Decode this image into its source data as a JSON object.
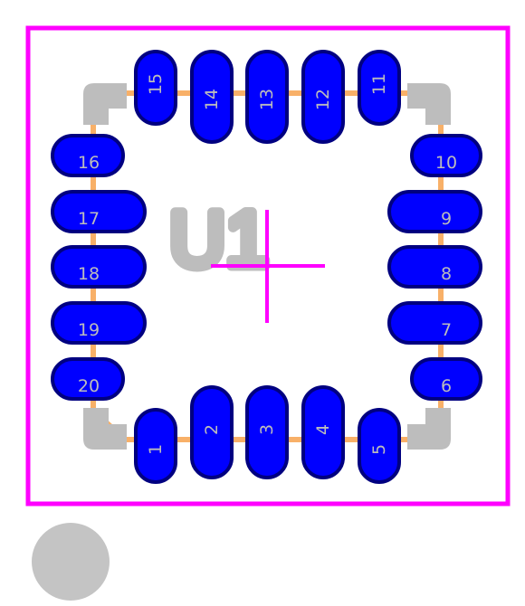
{
  "ref_designator": "U1",
  "pads": [
    {
      "num": "1"
    },
    {
      "num": "2"
    },
    {
      "num": "3"
    },
    {
      "num": "4"
    },
    {
      "num": "5"
    },
    {
      "num": "6"
    },
    {
      "num": "7"
    },
    {
      "num": "8"
    },
    {
      "num": "9"
    },
    {
      "num": "10"
    },
    {
      "num": "11"
    },
    {
      "num": "12"
    },
    {
      "num": "13"
    },
    {
      "num": "14"
    },
    {
      "num": "15"
    },
    {
      "num": "16"
    },
    {
      "num": "17"
    },
    {
      "num": "18"
    },
    {
      "num": "19"
    },
    {
      "num": "20"
    }
  ],
  "colors": {
    "board_outline": "#ff00ff",
    "pad_fill": "#0000ff",
    "pad_outline": "#000080",
    "trace": "#f8b068",
    "corner_pad": "#bdbdbd",
    "label": "#bcbcbc",
    "background": "#ffffff"
  }
}
